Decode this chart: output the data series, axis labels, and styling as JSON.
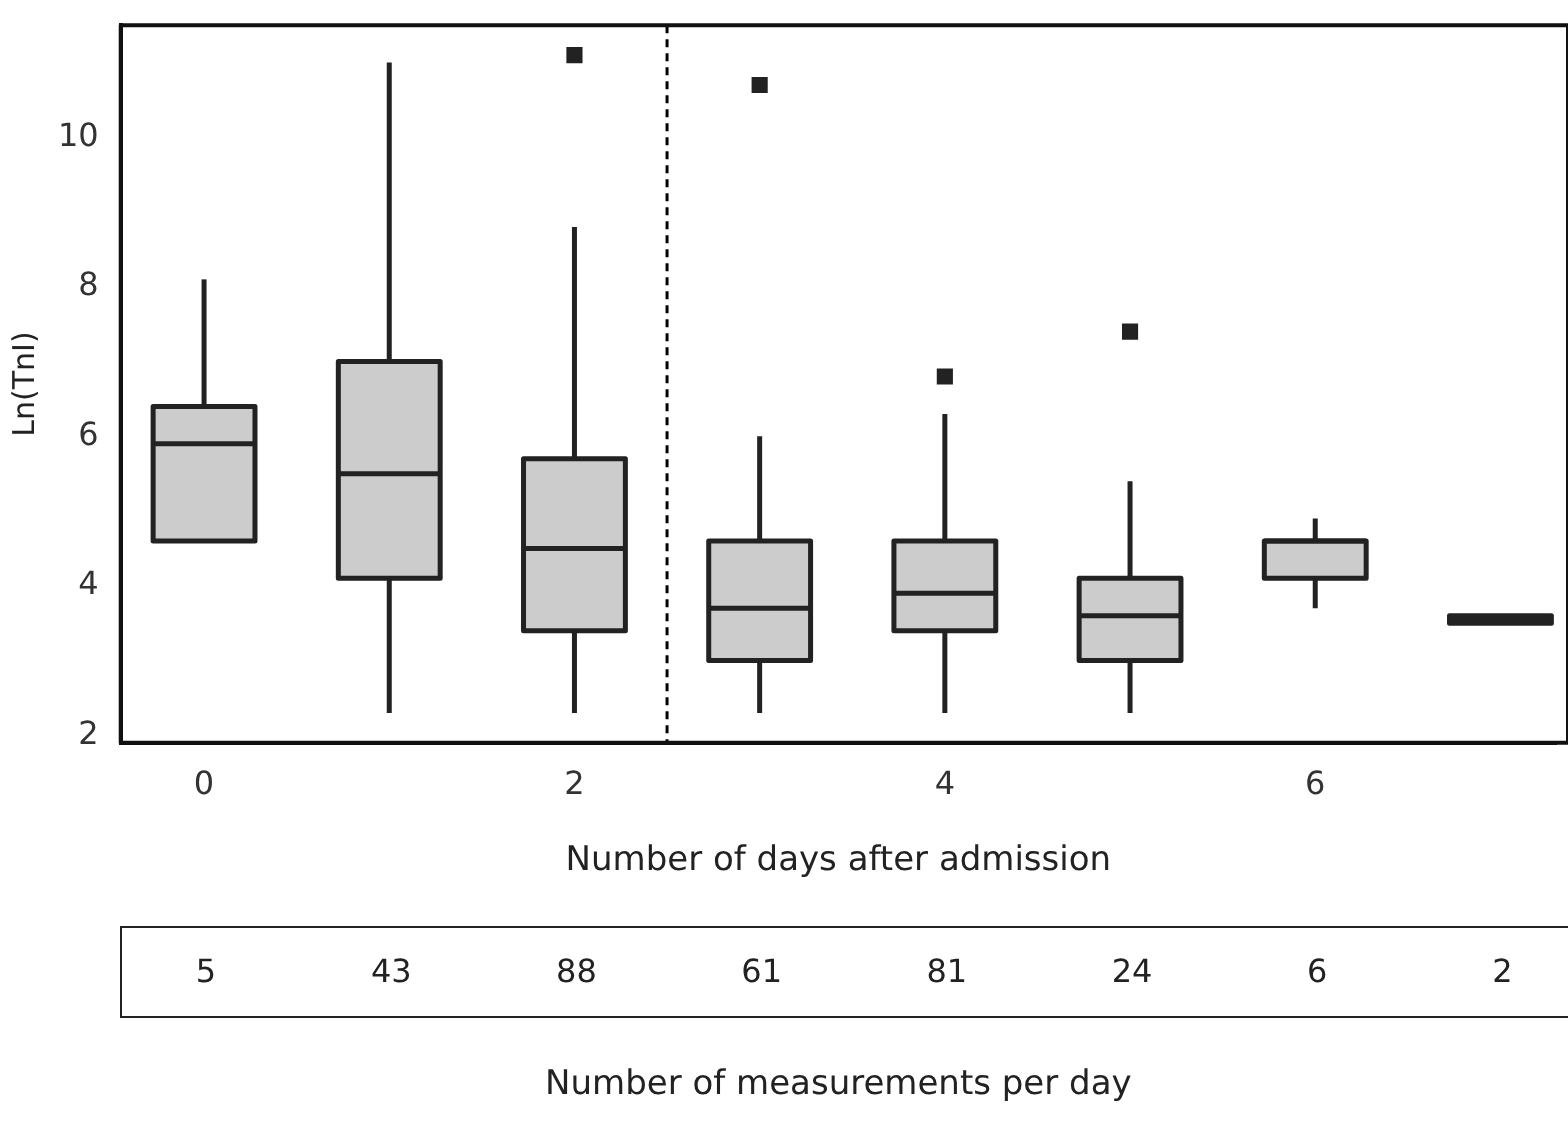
{
  "chart_data": {
    "type": "box",
    "xlabel": "Number of days after admission",
    "ylabel": "Ln(TnI)",
    "xlim": [
      -0.45,
      7.3
    ],
    "xticks": [
      0,
      2,
      4,
      6
    ],
    "ylim": [
      1.9,
      11.5
    ],
    "yticks": [
      2,
      4,
      6,
      8,
      10
    ],
    "series": [
      {
        "color": "#cccccc",
        "x": [
          0,
          1,
          2,
          3,
          4,
          5,
          6,
          7
        ],
        "boxes": [
          {
            "low": 4.6,
            "q1": 4.6,
            "median": 5.9,
            "q3": 6.4,
            "high": 8.1
          },
          {
            "low": 2.3,
            "q1": 4.1,
            "median": 5.5,
            "q3": 7.0,
            "high": 11.0
          },
          {
            "low": 2.3,
            "q1": 3.4,
            "median": 4.5,
            "q3": 5.7,
            "high": 8.8,
            "outliers": [
              11.1
            ]
          },
          {
            "low": 2.3,
            "q1": 3.0,
            "median": 3.7,
            "q3": 4.6,
            "high": 6.0,
            "outliers": [
              10.7
            ]
          },
          {
            "low": 2.3,
            "q1": 3.4,
            "median": 3.9,
            "q3": 4.6,
            "high": 6.3,
            "outliers": [
              6.8
            ]
          },
          {
            "low": 2.3,
            "q1": 3.0,
            "median": 3.6,
            "q3": 4.1,
            "high": 5.4,
            "outliers": [
              7.4
            ]
          },
          {
            "low": 3.7,
            "q1": 4.1,
            "median": 4.6,
            "q3": 4.6,
            "high": 4.9
          },
          {
            "low": 3.5,
            "q1": 3.5,
            "median": 3.55,
            "q3": 3.6,
            "high": 3.6
          }
        ]
      }
    ],
    "ref_lines": [
      {
        "axis": "x",
        "value": 2.5,
        "line_style": "dashed",
        "color": "#000000"
      }
    ],
    "annotations": [
      "5",
      "43",
      "88",
      "61",
      "81",
      "24",
      "6",
      "2",
      "Number of measurements per day"
    ]
  }
}
